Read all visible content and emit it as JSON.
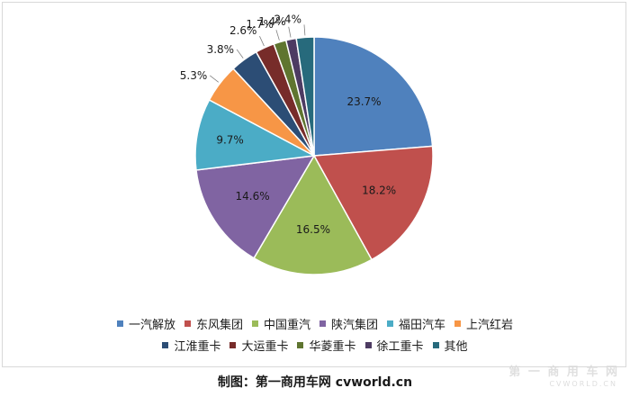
{
  "chart_data": {
    "type": "pie",
    "title": "",
    "series": [
      {
        "name": "一汽解放",
        "value": 23.7,
        "label": "23.7%",
        "color": "#4f81bd"
      },
      {
        "name": "东风集团",
        "value": 18.2,
        "label": "18.2%",
        "color": "#c0504d"
      },
      {
        "name": "中国重汽",
        "value": 16.5,
        "label": "16.5%",
        "color": "#9bbb59"
      },
      {
        "name": "陕汽集团",
        "value": 14.6,
        "label": "14.6%",
        "color": "#8064a2"
      },
      {
        "name": "福田汽车",
        "value": 9.7,
        "label": "9.7%",
        "color": "#4bacc6"
      },
      {
        "name": "上汽红岩",
        "value": 5.3,
        "label": "5.3%",
        "color": "#f79646"
      },
      {
        "name": "江淮重卡",
        "value": 3.8,
        "label": "3.8%",
        "color": "#2c4d75"
      },
      {
        "name": "大运重卡",
        "value": 2.6,
        "label": "2.6%",
        "color": "#772c2a"
      },
      {
        "name": "华菱重卡",
        "value": 1.7,
        "label": "1.7%",
        "color": "#5f7530"
      },
      {
        "name": "徐工重卡",
        "value": 1.4,
        "label": "1.4%",
        "color": "#4d3b62"
      },
      {
        "name": "其他",
        "value": 2.4,
        "label": "2.4%",
        "color": "#276a7c"
      }
    ],
    "legend_position": "bottom"
  },
  "caption": "制图：第一商用车网 cvworld.cn",
  "watermark": {
    "text": "第 一 商 用 车 网",
    "sub": "CVWORLD.CN"
  }
}
